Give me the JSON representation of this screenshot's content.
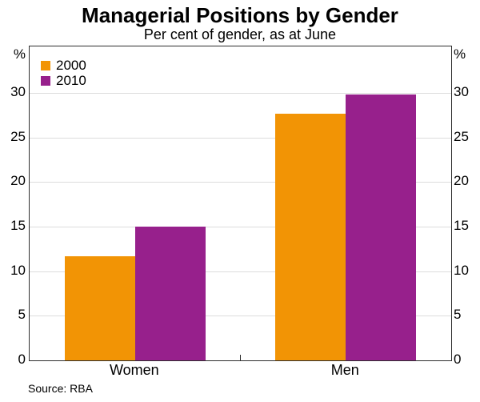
{
  "header": {
    "title": "Managerial Positions by Gender",
    "subtitle": "Per cent of gender, as at June"
  },
  "source": "Source: RBA",
  "chart_data": {
    "type": "bar",
    "title": "Managerial Positions by Gender",
    "subtitle": "Per cent of gender, as at June",
    "categories": [
      "Women",
      "Men"
    ],
    "series": [
      {
        "name": "2000",
        "color": "#F29405",
        "values": [
          11.7,
          27.7
        ]
      },
      {
        "name": "2010",
        "color": "#97208C",
        "values": [
          15.0,
          29.8
        ]
      }
    ],
    "unit_label_left": "%",
    "unit_label_right": "%",
    "yticks": [
      0,
      5,
      10,
      15,
      20,
      25,
      30
    ],
    "ylim": [
      0,
      35.2
    ],
    "grid": true,
    "legend_position": "top-left",
    "frame": true,
    "source": "Source: RBA"
  }
}
